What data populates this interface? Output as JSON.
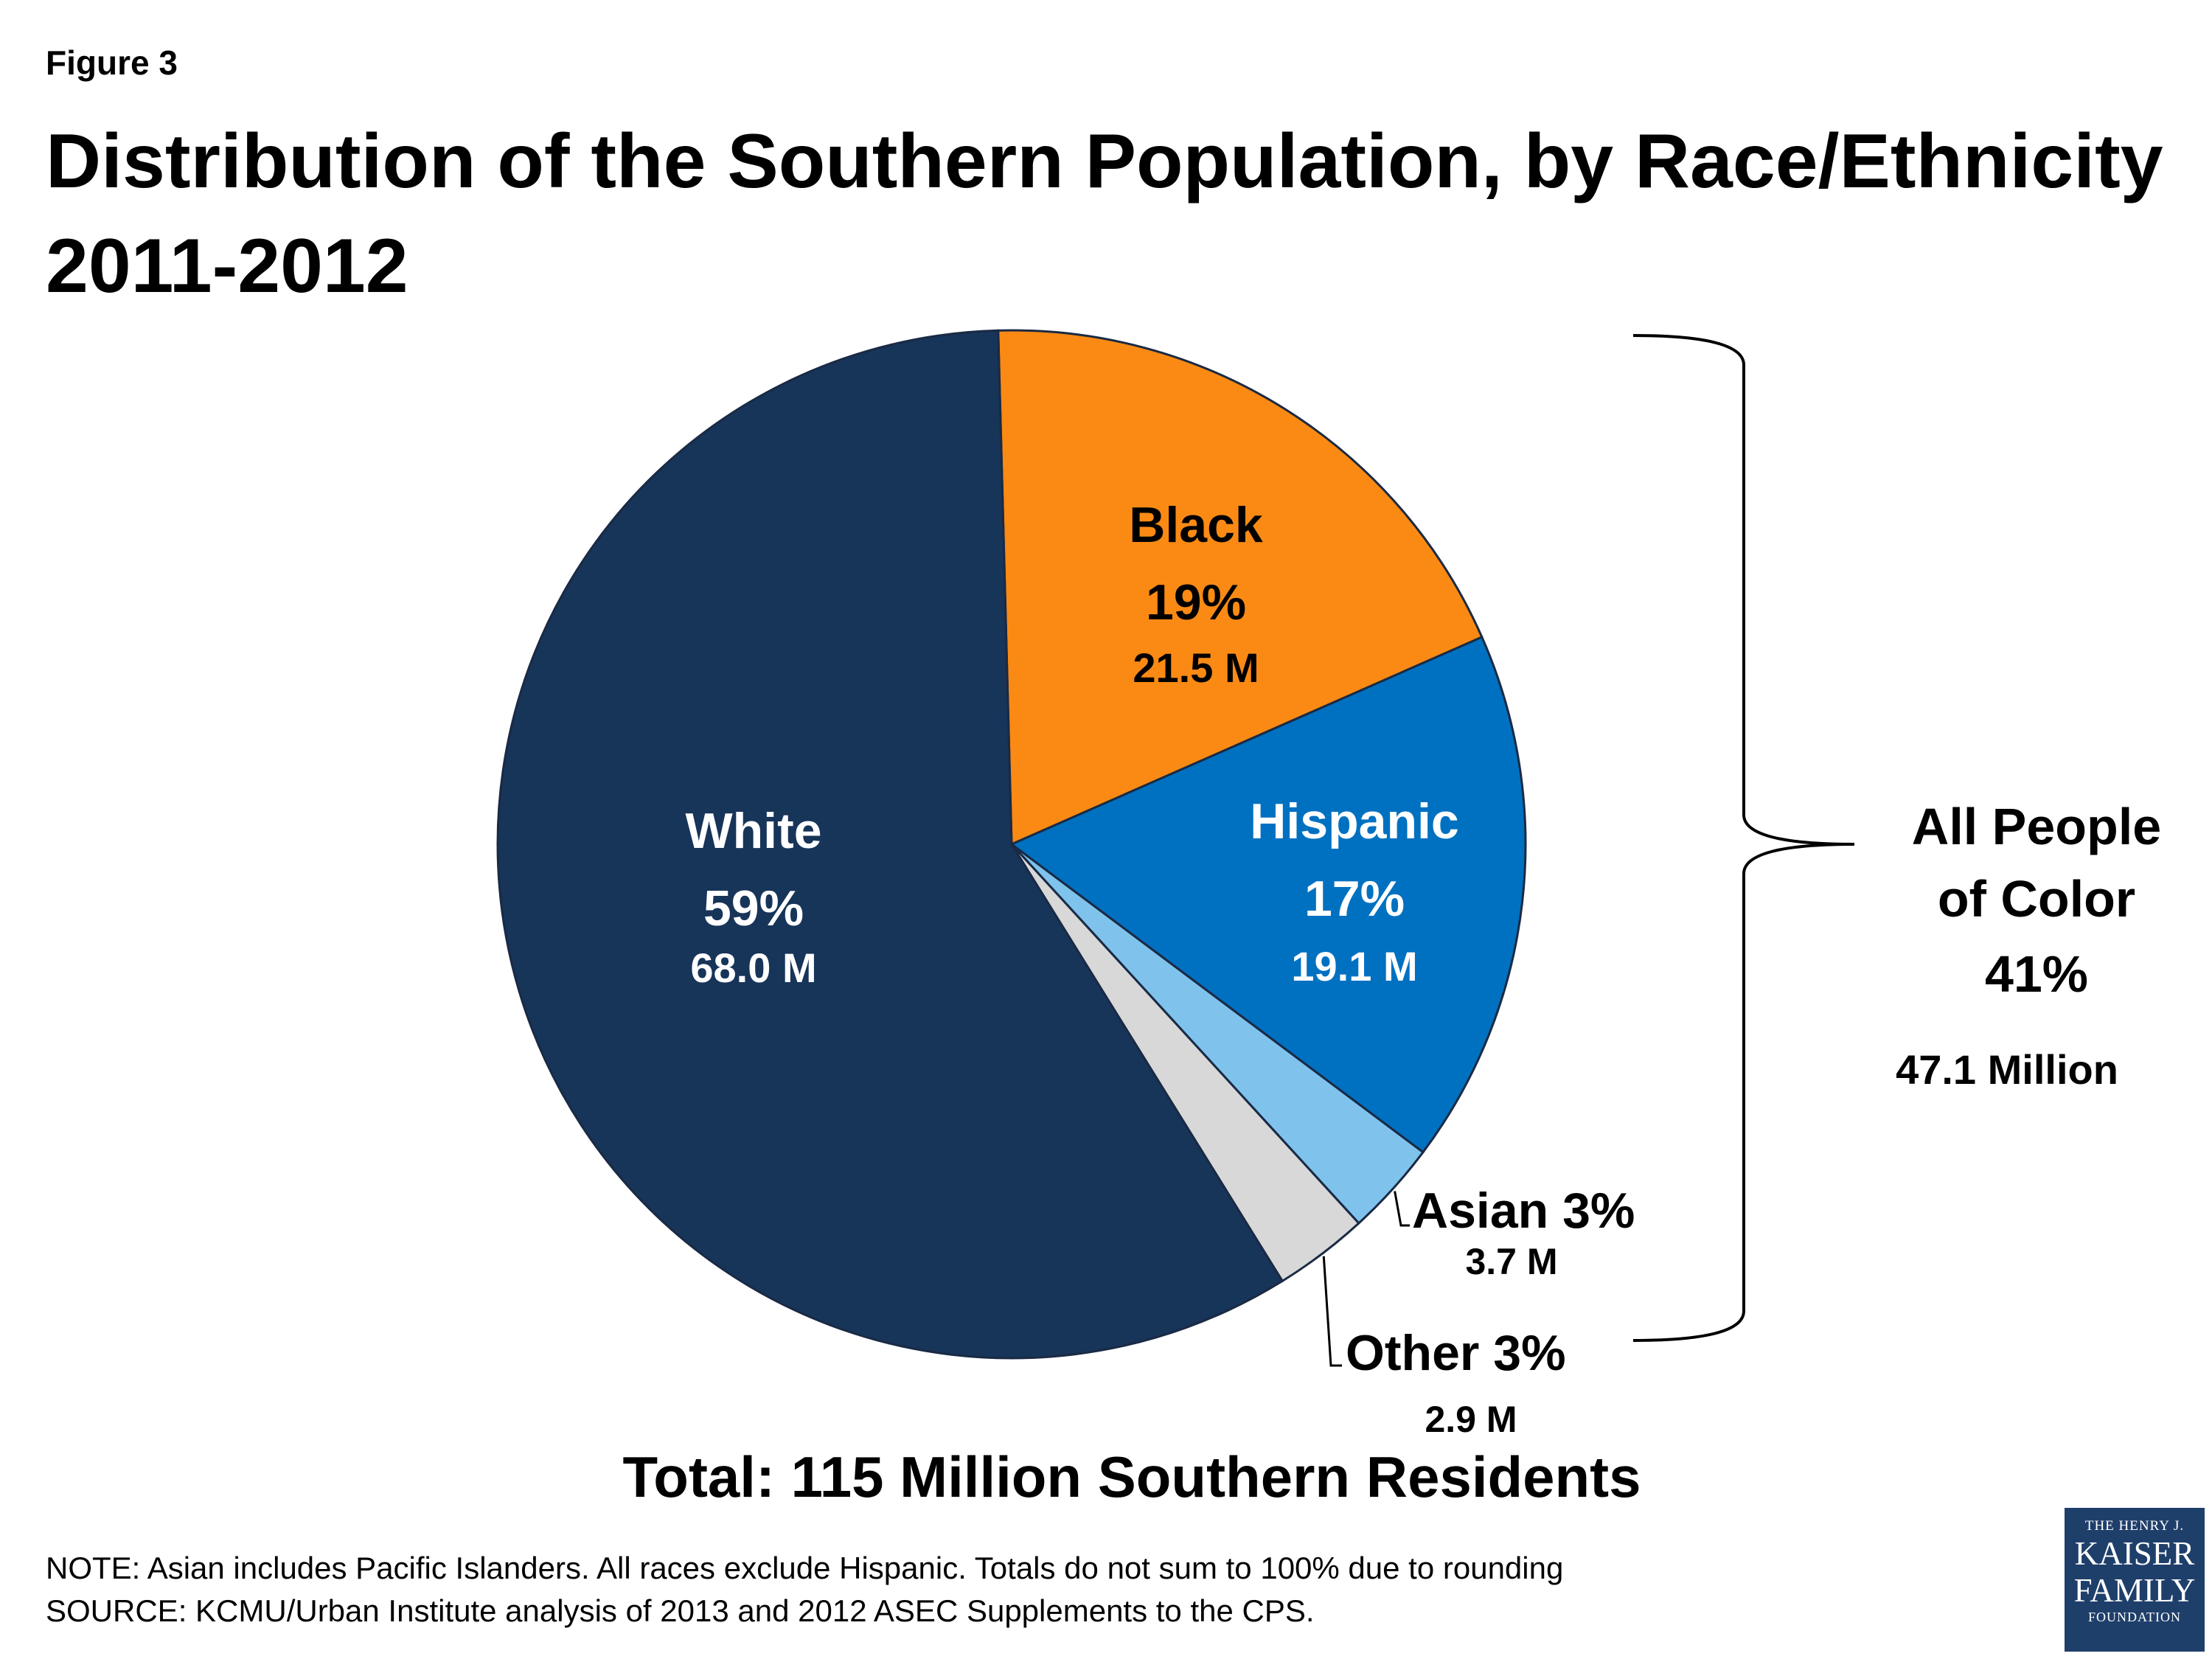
{
  "figure_label": "Figure 3",
  "title_line1": "Distribution of the Southern Population, by Race/Ethnicity",
  "title_line2": "2011-2012",
  "chart_data": {
    "type": "pie",
    "title": "Distribution of the Southern Population, by Race/Ethnicity 2011-2012",
    "units": "percent of population",
    "slices": [
      {
        "name": "Black",
        "percent": 19,
        "pct_label": "19%",
        "value_label": "21.5 M",
        "value_millions": 21.5,
        "color": "#fa8a14"
      },
      {
        "name": "Hispanic",
        "percent": 17,
        "pct_label": "17%",
        "value_label": "19.1 M",
        "value_millions": 19.1,
        "color": "#0071c1"
      },
      {
        "name": "Asian",
        "percent": 3,
        "pct_label": "Asian 3%",
        "value_label": "3.7 M",
        "value_millions": 3.7,
        "color": "#7fc3ed"
      },
      {
        "name": "Other",
        "percent": 3,
        "pct_label": "Other 3%",
        "value_label": "2.9 M",
        "value_millions": 2.9,
        "color": "#d8d8d8"
      },
      {
        "name": "White",
        "percent": 59,
        "pct_label": "59%",
        "value_label": "68.0 M",
        "value_millions": 68.0,
        "color": "#173459"
      }
    ],
    "bracket": {
      "line1": "All People",
      "line2": "of Color",
      "percent_label": "41%",
      "value_label": "47.1 Million"
    },
    "total_label": "Total: 115 Million Southern Residents"
  },
  "note": "NOTE: Asian includes Pacific Islanders. All races exclude Hispanic. Totals do not sum to 100% due to rounding",
  "source": "SOURCE: KCMU/Urban Institute analysis of 2013 and 2012 ASEC Supplements to the CPS.",
  "logo": {
    "line1": "THE HENRY J.",
    "line2": "KAISER",
    "line3": "FAMILY",
    "line4": "FOUNDATION"
  },
  "colors": {
    "outline": "#1a2a44",
    "bracket": "#000000",
    "logo_bg": "#1f3f6b"
  }
}
